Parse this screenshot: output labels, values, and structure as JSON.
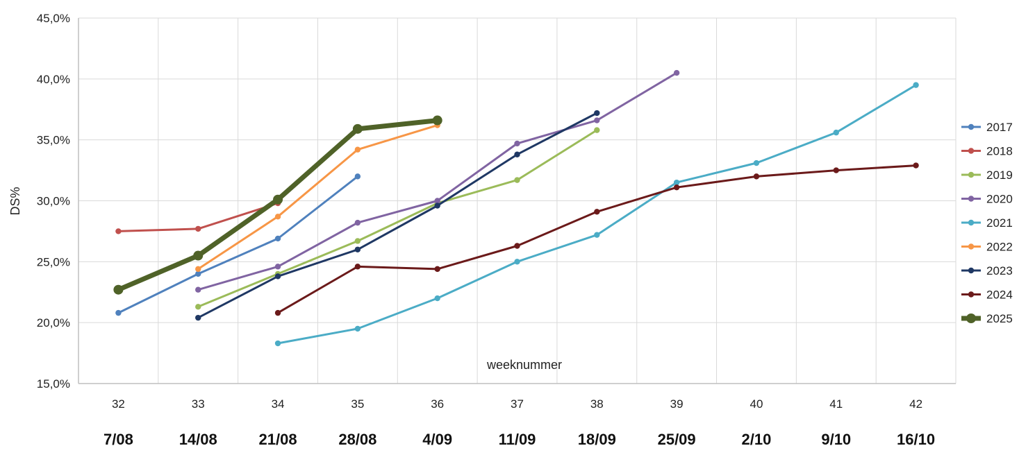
{
  "chart_data": {
    "type": "line",
    "ylabel": "DS%",
    "xlabel": "weeknummer",
    "ylim": [
      15,
      45
    ],
    "yticks": [
      "15,0%",
      "20,0%",
      "25,0%",
      "30,0%",
      "35,0%",
      "40,0%",
      "45,0%"
    ],
    "yticks_values": [
      15,
      20,
      25,
      30,
      35,
      40,
      45
    ],
    "x": [
      32,
      33,
      34,
      35,
      36,
      37,
      38,
      39,
      40,
      41,
      42
    ],
    "x_dates": [
      "7/08",
      "14/08",
      "21/08",
      "28/08",
      "4/09",
      "11/09",
      "18/09",
      "25/09",
      "2/10",
      "9/10",
      "16/10"
    ],
    "grid": true,
    "legend_position": "right",
    "series": [
      {
        "name": "2017",
        "color": "#4f81bd",
        "width": 3,
        "x": [
          32,
          33,
          34,
          35
        ],
        "values": [
          20.8,
          24.0,
          26.9,
          32.0
        ]
      },
      {
        "name": "2018",
        "color": "#c0504d",
        "width": 3,
        "x": [
          32,
          33,
          34
        ],
        "values": [
          27.5,
          27.7,
          29.8
        ]
      },
      {
        "name": "2019",
        "color": "#9bbb59",
        "width": 3,
        "x": [
          33,
          34,
          35,
          36,
          37,
          38
        ],
        "values": [
          21.3,
          24.0,
          26.7,
          29.8,
          31.7,
          35.8
        ]
      },
      {
        "name": "2020",
        "color": "#8064a2",
        "width": 3,
        "x": [
          33,
          34,
          35,
          36,
          37,
          38,
          39
        ],
        "values": [
          22.7,
          24.6,
          28.2,
          30.0,
          34.7,
          36.6,
          40.5
        ]
      },
      {
        "name": "2021",
        "color": "#4bacc6",
        "width": 3,
        "x": [
          34,
          35,
          36,
          37,
          38,
          39,
          40,
          41,
          42
        ],
        "values": [
          18.3,
          19.5,
          22.0,
          25.0,
          27.2,
          31.5,
          33.1,
          35.6,
          39.5
        ]
      },
      {
        "name": "2022",
        "color": "#f79646",
        "width": 3,
        "x": [
          33,
          34,
          35,
          36
        ],
        "values": [
          24.4,
          28.7,
          34.2,
          36.2
        ]
      },
      {
        "name": "2023",
        "color": "#1f3864",
        "width": 3,
        "x": [
          33,
          34,
          35,
          36,
          37,
          38
        ],
        "values": [
          20.4,
          23.8,
          26.0,
          29.6,
          33.8,
          37.2
        ]
      },
      {
        "name": "2024",
        "color": "#6b1a1a",
        "width": 3,
        "x": [
          34,
          35,
          36,
          37,
          38,
          39,
          40,
          41,
          42
        ],
        "values": [
          20.8,
          24.6,
          24.4,
          26.3,
          29.1,
          31.1,
          32.0,
          32.5,
          32.9
        ]
      },
      {
        "name": "2025",
        "color": "#4f6228",
        "width": 7,
        "x": [
          32,
          33,
          34,
          35,
          36
        ],
        "values": [
          22.7,
          25.5,
          30.1,
          35.9,
          36.6
        ]
      }
    ]
  }
}
